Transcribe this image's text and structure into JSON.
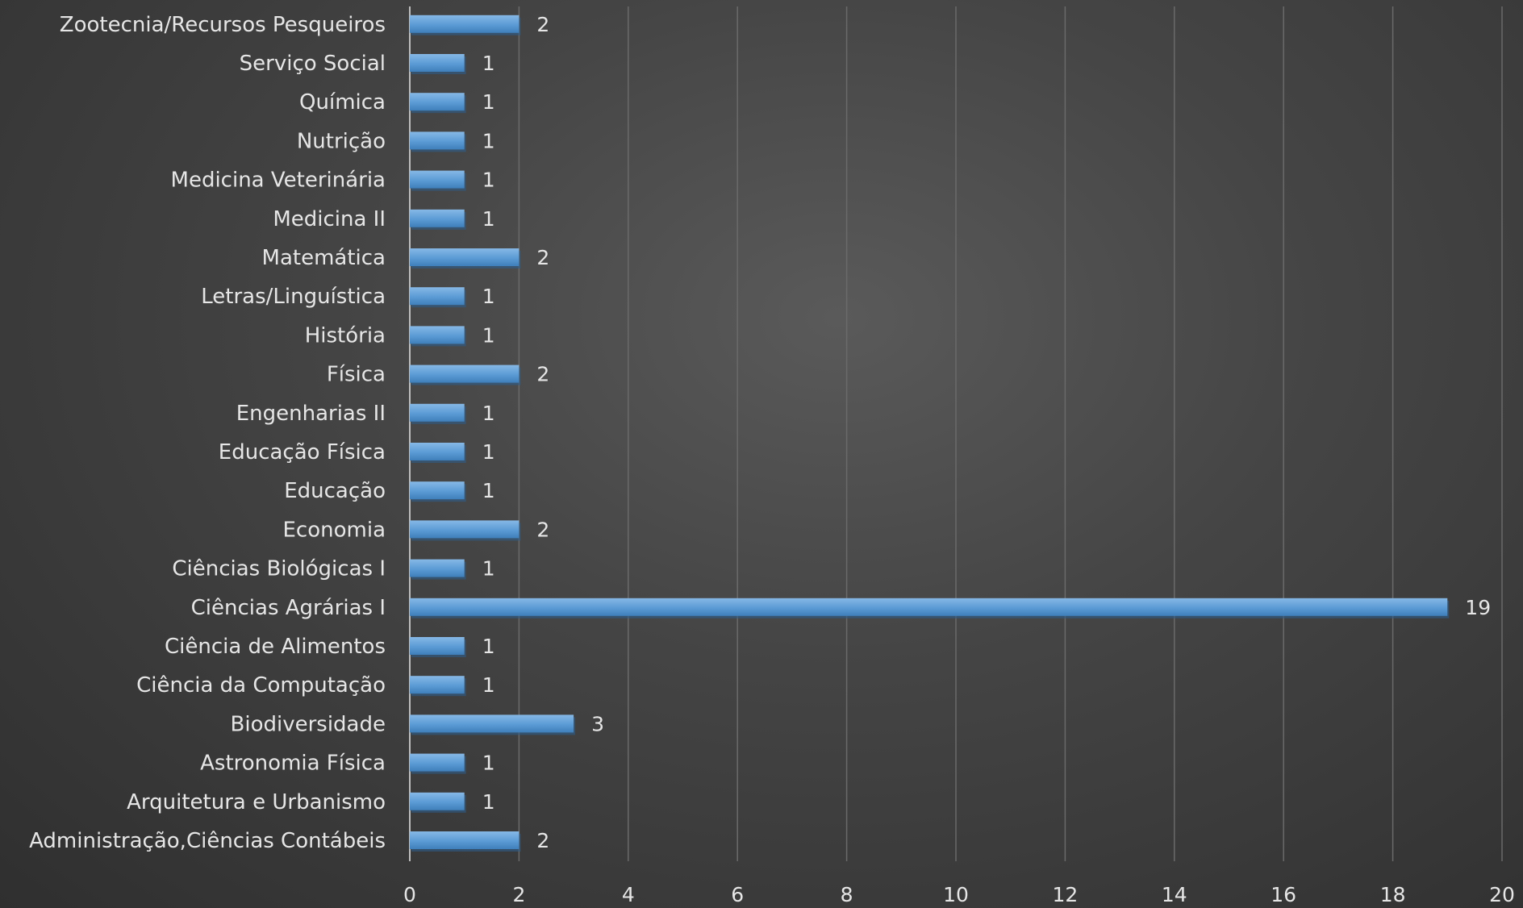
{
  "chart_data": {
    "type": "bar",
    "orientation": "horizontal",
    "title": "",
    "xlabel": "",
    "ylabel": "",
    "categories": [
      "Administração,Ciências Contábeis",
      "Arquitetura e Urbanismo",
      "Astronomia Física",
      "Biodiversidade",
      "Ciência da Computação",
      "Ciência de Alimentos",
      "Ciências Agrárias I",
      "Ciências Biológicas I",
      "Economia",
      "Educação",
      "Educação Física",
      "Engenharias II",
      "Física",
      "História",
      "Letras/Linguística",
      "Matemática",
      "Medicina II",
      "Medicina Veterinária",
      "Nutrição",
      "Química",
      "Serviço Social",
      "Zootecnia/Recursos Pesqueiros"
    ],
    "values": [
      2,
      1,
      1,
      3,
      1,
      1,
      19,
      1,
      2,
      1,
      1,
      1,
      2,
      1,
      1,
      2,
      1,
      1,
      1,
      1,
      1,
      2
    ],
    "xlim": [
      0,
      20
    ],
    "xticks": [
      0,
      2,
      4,
      6,
      8,
      10,
      12,
      14,
      16,
      18,
      20
    ],
    "grid": true,
    "data_labels": true,
    "legend": "none",
    "colors": {
      "bar": "#5b9bd5",
      "bar_highlight": "#86b8e6",
      "bar_shadow": "#2e5d8a",
      "text": "#e6e6e6",
      "grid": "#6a6a6a",
      "background": "#3c3c3c"
    }
  }
}
